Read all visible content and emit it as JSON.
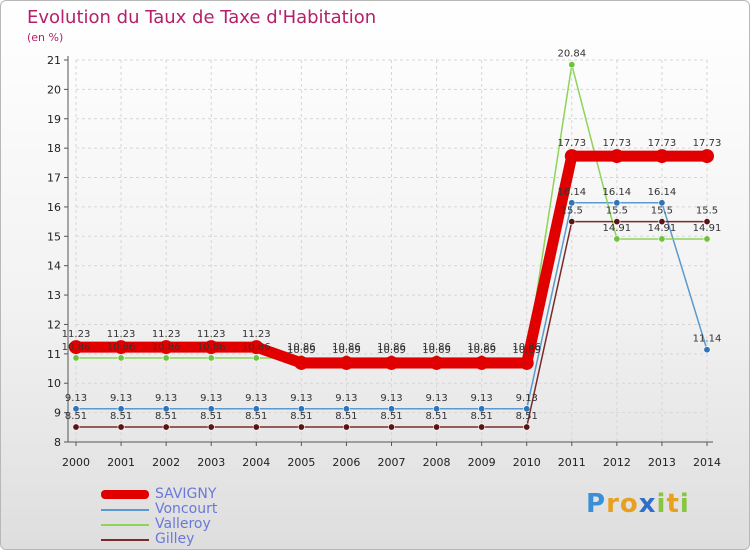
{
  "chart_data": {
    "type": "line",
    "title": "Evolution du Taux de Taxe d'Habitation",
    "subtitle": "(en %)",
    "ylim": [
      8,
      21
    ],
    "yticks": [
      8,
      9,
      10,
      11,
      12,
      13,
      14,
      15,
      16,
      17,
      18,
      19,
      20,
      21
    ],
    "categories": [
      "2000",
      "2001",
      "2002",
      "2003",
      "2004",
      "2005",
      "2006",
      "2007",
      "2008",
      "2009",
      "2010",
      "2011",
      "2012",
      "2013",
      "2014"
    ],
    "series": [
      {
        "name": "SAVIGNY",
        "color": "#e00000",
        "emphasis": true,
        "values": [
          11.23,
          11.23,
          11.23,
          11.23,
          11.23,
          10.69,
          10.69,
          10.69,
          10.69,
          10.69,
          10.69,
          17.73,
          17.73,
          17.73,
          17.73
        ],
        "labels": [
          "11.23",
          "11.23",
          "11.23",
          "11.23",
          "11.23",
          "10.69",
          "10.69",
          "10.69",
          "10.69",
          "10.69",
          "10.69",
          "17.73",
          "17.73",
          "17.73",
          "17.73"
        ]
      },
      {
        "name": "Voncourt",
        "color": "#5a9ad0",
        "marker": "#2f73b8",
        "values": [
          9.13,
          9.13,
          9.13,
          9.13,
          9.13,
          9.13,
          9.13,
          9.13,
          9.13,
          9.13,
          9.13,
          16.14,
          16.14,
          16.14,
          11.14
        ],
        "labels": [
          "9.13",
          "9.13",
          "9.13",
          "9.13",
          "9.13",
          "9.13",
          "9.13",
          "9.13",
          "9.13",
          "9.13",
          "9.13",
          "16.14",
          "16.14",
          "16.14",
          "11.14"
        ]
      },
      {
        "name": "Valleroy",
        "color": "#8ed35a",
        "marker": "#6fc23c",
        "values": [
          10.86,
          10.86,
          10.86,
          10.86,
          10.86,
          10.86,
          10.86,
          10.86,
          10.86,
          10.86,
          10.86,
          20.84,
          14.91,
          14.91,
          14.91
        ],
        "labels": [
          "10.86",
          "10.86",
          "10.86",
          "10.86",
          "10.86",
          "10.86",
          "10.86",
          "10.86",
          "10.86",
          "10.86",
          "10.86",
          "20.84",
          "14.91",
          "14.91",
          "14.91"
        ]
      },
      {
        "name": "Gilley",
        "color": "#7a2a2a",
        "marker": "#5a1414",
        "values": [
          8.51,
          8.51,
          8.51,
          8.51,
          8.51,
          8.51,
          8.51,
          8.51,
          8.51,
          8.51,
          8.51,
          15.5,
          15.5,
          15.5,
          15.5
        ],
        "labels": [
          "8.51",
          "8.51",
          "8.51",
          "8.51",
          "8.51",
          "8.51",
          "8.51",
          "8.51",
          "8.51",
          "8.51",
          "8.51",
          "15.5",
          "15.5",
          "15.5",
          "15.5"
        ]
      }
    ]
  },
  "legend": [
    {
      "name": "SAVIGNY",
      "color": "#e00000"
    },
    {
      "name": "Voncourt",
      "color": "#5a9ad0"
    },
    {
      "name": "Valleroy",
      "color": "#8ed35a"
    },
    {
      "name": "Gilley",
      "color": "#7a2a2a"
    }
  ],
  "brand": {
    "letters": [
      "P",
      "r",
      "o",
      "x",
      "i",
      "t",
      "i"
    ],
    "colors": [
      "#3a8fd8",
      "#e8a020",
      "#e8a020",
      "#2f6fc8",
      "#88c540",
      "#e8a020",
      "#88c540"
    ]
  }
}
